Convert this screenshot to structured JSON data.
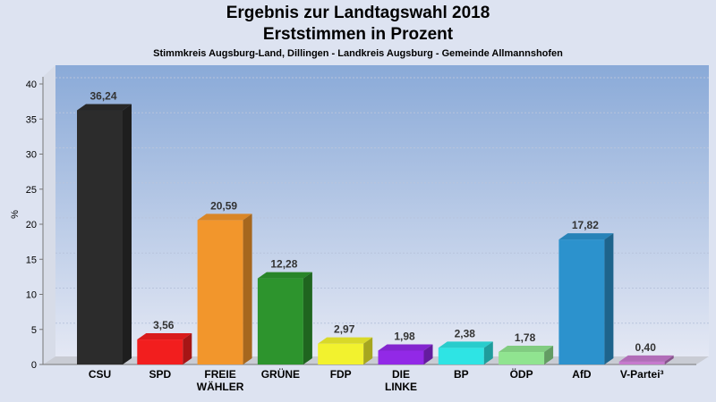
{
  "chart_data": {
    "type": "bar",
    "title": "Ergebnis zur Landtagswahl 2018",
    "subtitle": "Erststimmen in Prozent",
    "caption": "Stimmkreis Augsburg-Land, Dillingen - Landkreis Augsburg - Gemeinde Allmannshofen",
    "ylabel": "%",
    "ylim": [
      0,
      40
    ],
    "yticks": [
      0,
      5,
      10,
      15,
      20,
      25,
      30,
      35,
      40
    ],
    "grid": true,
    "categories": [
      [
        "CSU"
      ],
      [
        "SPD"
      ],
      [
        "FREIE",
        "WÄHLER"
      ],
      [
        "GRÜNE"
      ],
      [
        "FDP"
      ],
      [
        "DIE",
        "LINKE"
      ],
      [
        "BP"
      ],
      [
        "ÖDP"
      ],
      [
        "AfD"
      ],
      [
        "V-Partei³"
      ]
    ],
    "values": [
      36.24,
      3.56,
      20.59,
      12.28,
      2.97,
      1.98,
      2.38,
      1.78,
      17.82,
      0.4
    ],
    "value_labels": [
      "36,24",
      "3,56",
      "20,59",
      "12,28",
      "2,97",
      "1,98",
      "2,38",
      "1,78",
      "17,82",
      "0,40"
    ],
    "colors": [
      "#2e2e2e",
      "#ff2020",
      "#ff9e2e",
      "#2f9c2f",
      "#ffff30",
      "#9a2bf3",
      "#30f0f0",
      "#98f098",
      "#2e9ad8",
      "#d080d8"
    ]
  }
}
